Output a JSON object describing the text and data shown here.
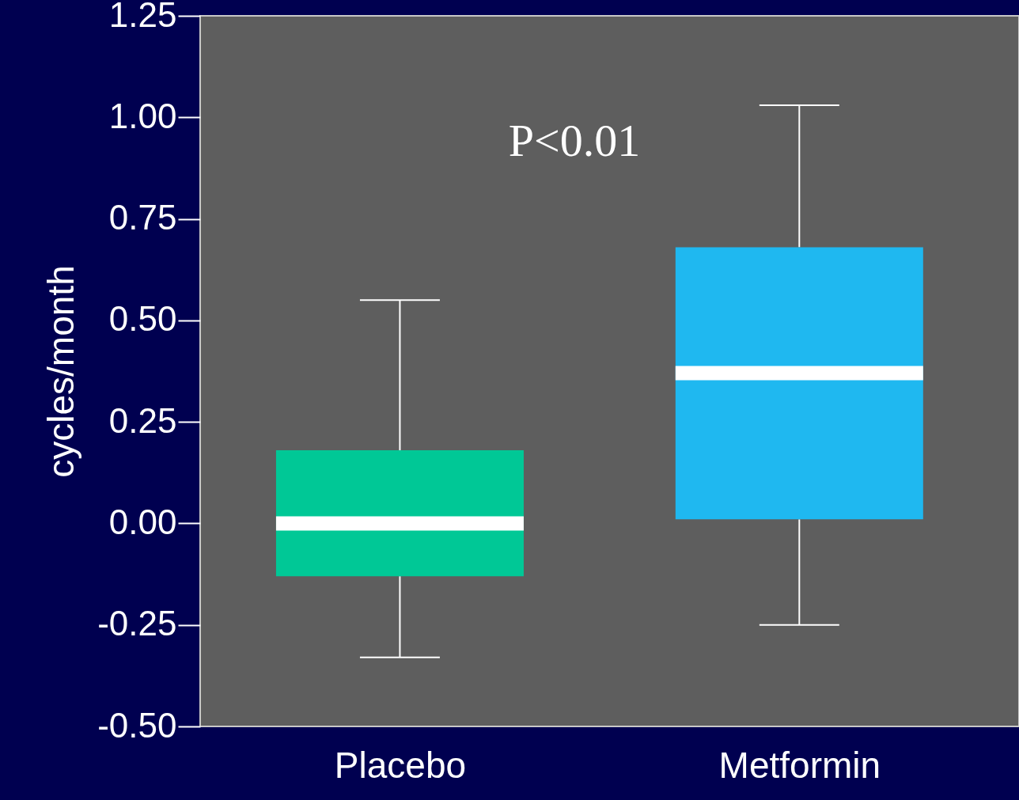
{
  "chart_data": {
    "type": "box",
    "ylabel": "cycles/month",
    "categories": [
      "Placebo",
      "Metformin"
    ],
    "boxes": [
      {
        "low": -0.33,
        "q1": -0.13,
        "median": 0.0,
        "q3": 0.18,
        "high": 0.55
      },
      {
        "low": -0.25,
        "q1": 0.01,
        "median": 0.37,
        "q3": 0.68,
        "high": 1.03
      }
    ],
    "colors": [
      "#00c896",
      "#1fb8f0"
    ],
    "ylim": [
      -0.5,
      1.25
    ],
    "yticks": [
      {
        "value": -0.5,
        "label": "-0.50"
      },
      -0.25,
      {
        "value": 0,
        "label": "0.00"
      },
      0.25,
      {
        "value": 0.5,
        "label": "0.50"
      },
      0.75,
      {
        "value": 1,
        "label": "1.00"
      },
      1.25
    ],
    "annotations": [
      "P<0.01"
    ],
    "grid": false,
    "legend": false
  }
}
